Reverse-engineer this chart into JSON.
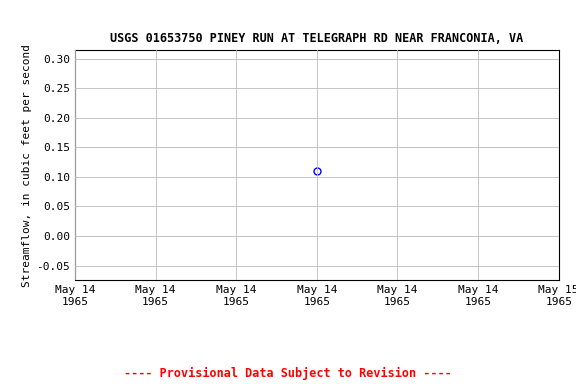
{
  "title": "USGS 01653750 PINEY RUN AT TELEGRAPH RD NEAR FRANCONIA, VA",
  "ylabel": "Streamflow, in cubic feet per second",
  "ylim": [
    -0.075,
    0.315
  ],
  "yticks": [
    -0.05,
    0.0,
    0.05,
    0.1,
    0.15,
    0.2,
    0.25,
    0.3
  ],
  "xlim_num": [
    0.0,
    1.0
  ],
  "data_x": [
    0.5
  ],
  "data_y": [
    0.11
  ],
  "marker_color": "#0000ff",
  "marker_style": "o",
  "marker_size": 5,
  "marker_facecolor": "none",
  "grid_color": "#bbbbbb",
  "bg_color": "#ffffff",
  "title_fontsize": 8.5,
  "axis_fontsize": 8,
  "tick_fontsize": 8,
  "xtick_labels": [
    "May 14\n1965",
    "May 14\n1965",
    "May 14\n1965",
    "May 14\n1965",
    "May 14\n1965",
    "May 14\n1965",
    "May 15\n1965"
  ],
  "xtick_positions": [
    0.0,
    0.1667,
    0.3333,
    0.5,
    0.6667,
    0.8333,
    1.0
  ],
  "provisional_text": "---- Provisional Data Subject to Revision ----",
  "provisional_color": "#ff0000",
  "provisional_fontsize": 8.5
}
